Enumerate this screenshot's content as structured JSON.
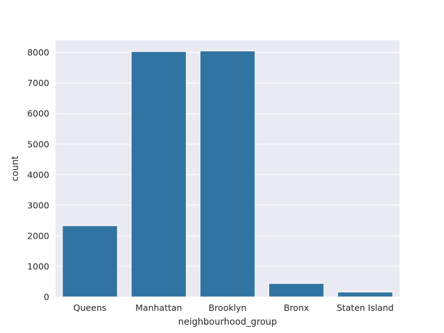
{
  "chart_data": {
    "type": "bar",
    "categories": [
      "Queens",
      "Manhattan",
      "Brooklyn",
      "Bronx",
      "Staten Island"
    ],
    "values": [
      2330,
      8030,
      8050,
      440,
      160
    ],
    "xlabel": "neighbourhood_group",
    "ylabel": "count",
    "ylim": [
      0,
      8400
    ],
    "yticks": [
      0,
      1000,
      2000,
      3000,
      4000,
      5000,
      6000,
      7000,
      8000
    ],
    "grid": true,
    "colors": {
      "bar": "#3274a1",
      "background": "#eaeaf2",
      "grid": "#ffffff"
    }
  }
}
